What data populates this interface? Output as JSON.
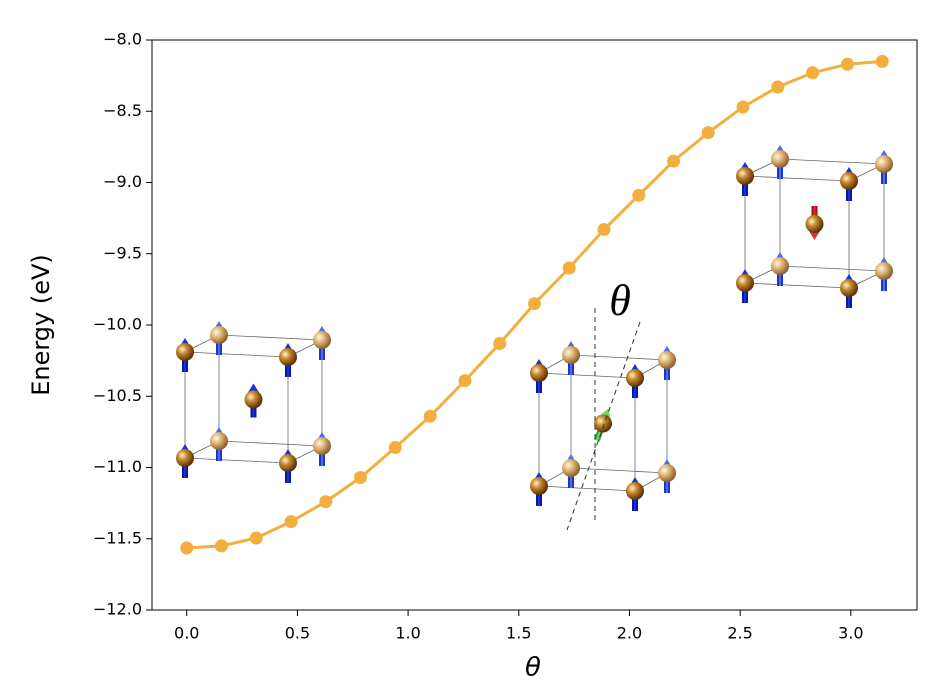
{
  "chart_data": {
    "type": "line",
    "x_label": "θ",
    "y_label": "Energy (eV)",
    "annotation": "θ",
    "x": [
      0,
      0.157,
      0.314,
      0.471,
      0.628,
      0.785,
      0.942,
      1.1,
      1.257,
      1.414,
      1.571,
      1.728,
      1.885,
      2.042,
      2.199,
      2.356,
      2.513,
      2.67,
      2.827,
      2.985,
      3.142
    ],
    "series": [
      {
        "color": "#f4ae3d",
        "values": [
          -11.565,
          -11.55,
          -11.495,
          -11.38,
          -11.24,
          -11.07,
          -10.86,
          -10.64,
          -10.39,
          -10.13,
          -9.85,
          -9.6,
          -9.33,
          -9.09,
          -8.85,
          -8.65,
          -8.47,
          -8.33,
          -8.23,
          -8.17,
          -8.15
        ]
      }
    ],
    "xlim": [
      -0.157,
      3.299
    ],
    "ylim": [
      -12,
      -8
    ],
    "xticks": [
      {
        "value": 0,
        "label": "0.0"
      },
      {
        "value": 0.5,
        "label": "0.5"
      },
      {
        "value": 1,
        "label": "1.0"
      },
      {
        "value": 1.5,
        "label": "1.5"
      },
      {
        "value": 2,
        "label": "2.0"
      },
      {
        "value": 2.5,
        "label": "2.5"
      },
      {
        "value": 3,
        "label": "3.0"
      }
    ],
    "yticks": [
      {
        "value": -12,
        "label": "−12.0"
      },
      {
        "value": -11.5,
        "label": "−11.5"
      },
      {
        "value": -11,
        "label": "−11.0"
      },
      {
        "value": -10.5,
        "label": "−10.5"
      },
      {
        "value": -10,
        "label": "−10.0"
      },
      {
        "value": -9.5,
        "label": "−9.5"
      },
      {
        "value": -9,
        "label": "−9.0"
      },
      {
        "value": -8.5,
        "label": "−8.5"
      },
      {
        "value": -8,
        "label": "−8.0"
      }
    ],
    "grid": false
  }
}
